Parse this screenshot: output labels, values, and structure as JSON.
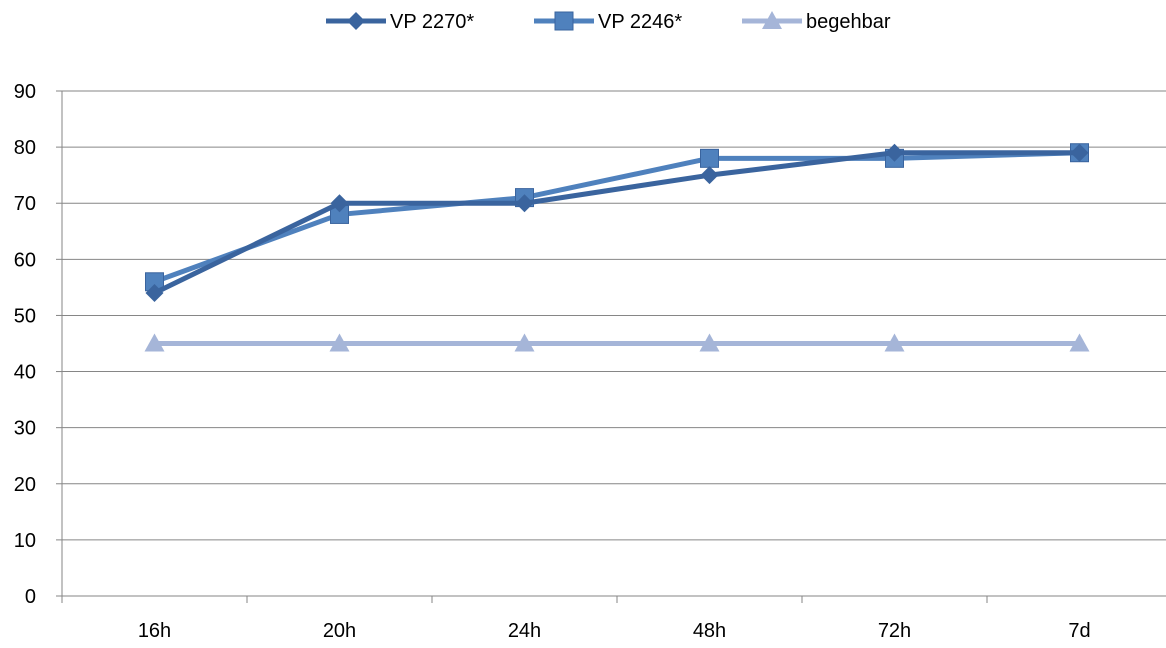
{
  "chart_data": {
    "type": "line",
    "categories": [
      "16h",
      "20h",
      "24h",
      "48h",
      "72h",
      "7d"
    ],
    "series": [
      {
        "name": "VP 2270*",
        "values": [
          54,
          70,
          70,
          75,
          79,
          79
        ],
        "color": "#3a649e",
        "marker": "diamond"
      },
      {
        "name": "VP 2246*",
        "values": [
          56,
          68,
          71,
          78,
          78,
          79
        ],
        "color": "#4f81bd",
        "marker": "square"
      },
      {
        "name": "begehbar",
        "values": [
          45,
          45,
          45,
          45,
          45,
          45
        ],
        "color": "#a5b5d8",
        "marker": "triangle"
      }
    ],
    "ylim": [
      0,
      90
    ],
    "yticks": [
      0,
      10,
      20,
      30,
      40,
      50,
      60,
      70,
      80,
      90
    ],
    "grid": true,
    "legend_position": "top"
  }
}
